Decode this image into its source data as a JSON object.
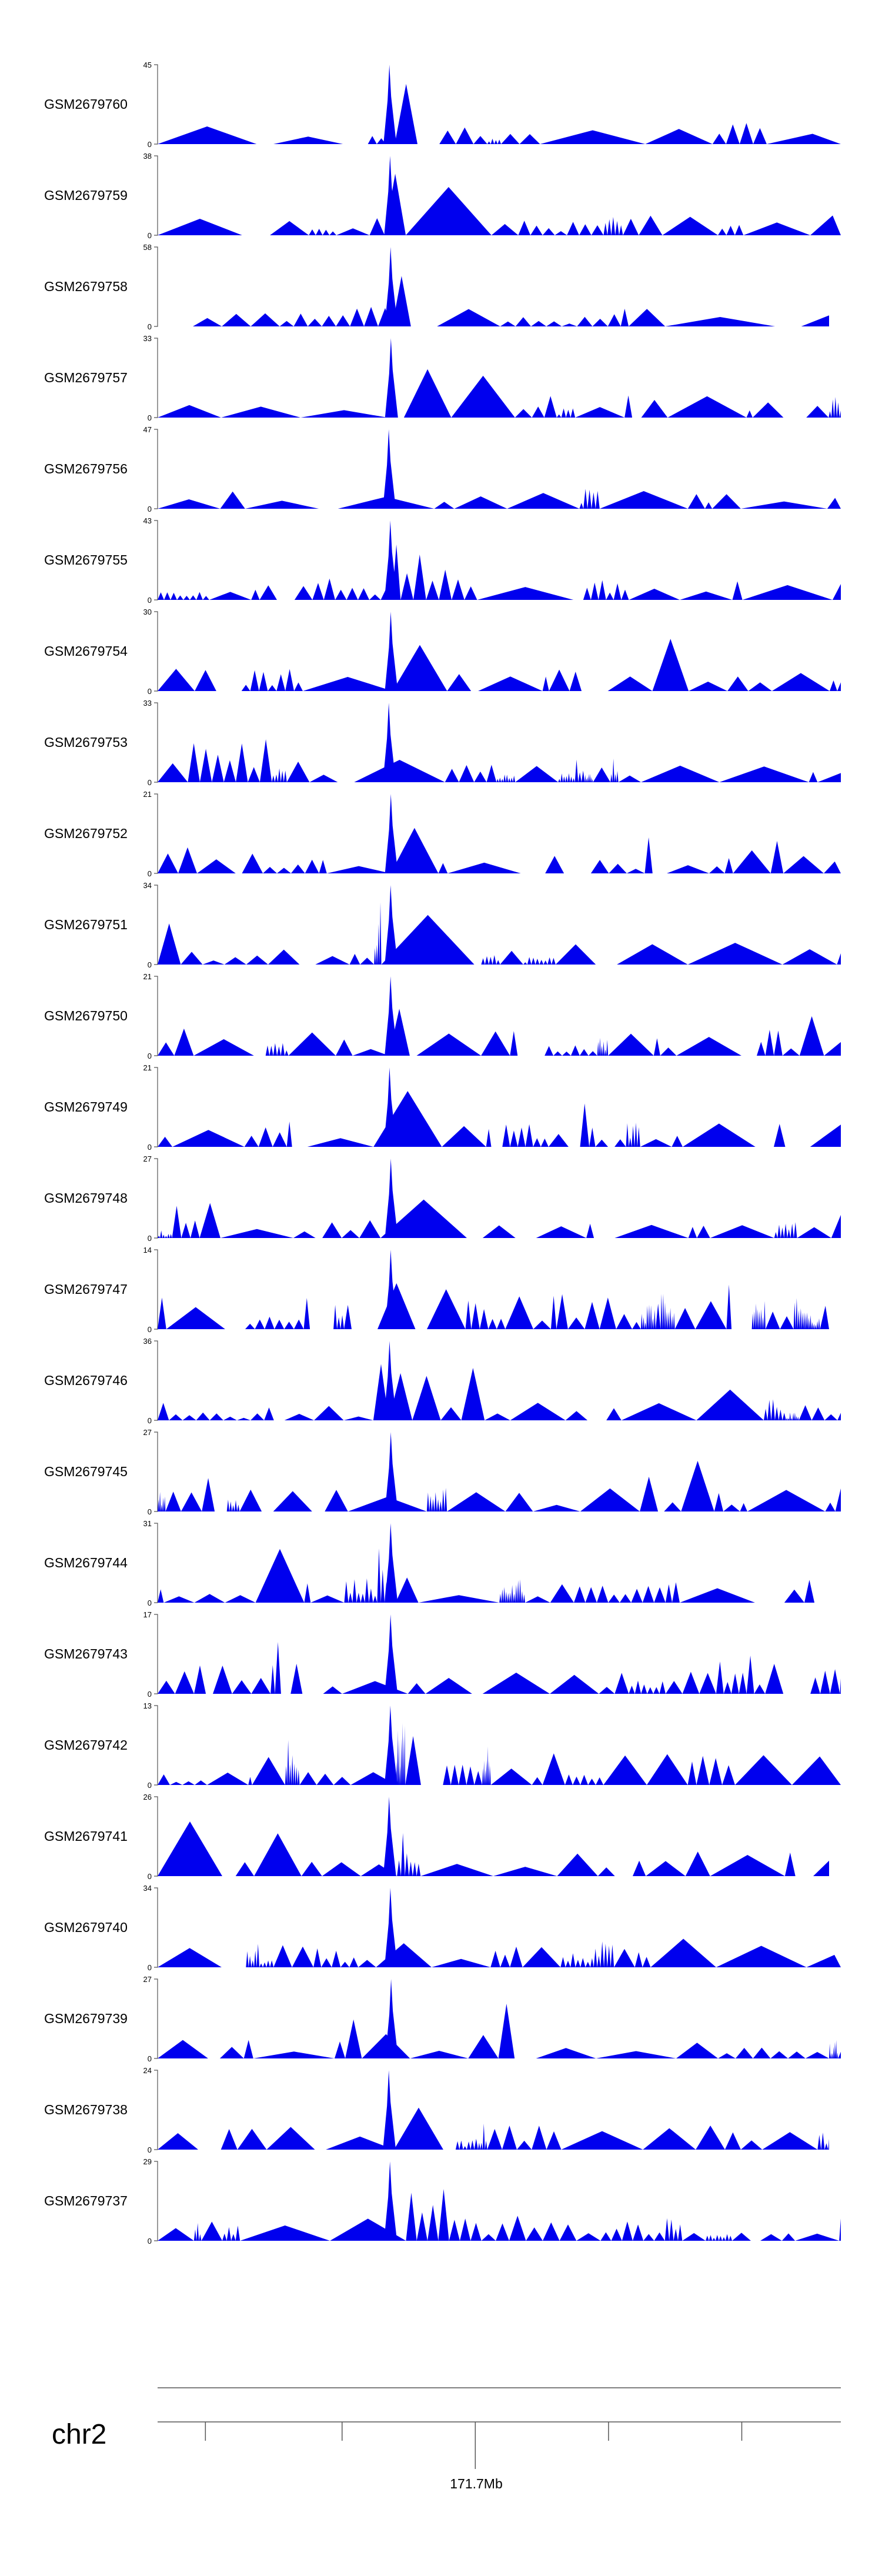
{
  "colors": {
    "track_fill": "#0000ee",
    "axis": "#555555",
    "text": "#000000",
    "background": "#ffffff"
  },
  "chart_data": {
    "type": "area",
    "title": "",
    "chromosome": "chr2",
    "position_label": "171.7Mb",
    "tracks": [
      {
        "name": "GSM2679760",
        "max": 45,
        "min": 0
      },
      {
        "name": "GSM2679759",
        "max": 38,
        "min": 0
      },
      {
        "name": "GSM2679758",
        "max": 58,
        "min": 0
      },
      {
        "name": "GSM2679757",
        "max": 33,
        "min": 0
      },
      {
        "name": "GSM2679756",
        "max": 47,
        "min": 0
      },
      {
        "name": "GSM2679755",
        "max": 43,
        "min": 0
      },
      {
        "name": "GSM2679754",
        "max": 30,
        "min": 0
      },
      {
        "name": "GSM2679753",
        "max": 33,
        "min": 0
      },
      {
        "name": "GSM2679752",
        "max": 21,
        "min": 0
      },
      {
        "name": "GSM2679751",
        "max": 34,
        "min": 0
      },
      {
        "name": "GSM2679750",
        "max": 21,
        "min": 0
      },
      {
        "name": "GSM2679749",
        "max": 21,
        "min": 0
      },
      {
        "name": "GSM2679748",
        "max": 27,
        "min": 0
      },
      {
        "name": "GSM2679747",
        "max": 14,
        "min": 0
      },
      {
        "name": "GSM2679746",
        "max": 36,
        "min": 0
      },
      {
        "name": "GSM2679745",
        "max": 27,
        "min": 0
      },
      {
        "name": "GSM2679744",
        "max": 31,
        "min": 0
      },
      {
        "name": "GSM2679743",
        "max": 17,
        "min": 0
      },
      {
        "name": "GSM2679742",
        "max": 13,
        "min": 0
      },
      {
        "name": "GSM2679741",
        "max": 26,
        "min": 0
      },
      {
        "name": "GSM2679740",
        "max": 34,
        "min": 0
      },
      {
        "name": "GSM2679739",
        "max": 27,
        "min": 0
      },
      {
        "name": "GSM2679738",
        "max": 24,
        "min": 0
      },
      {
        "name": "GSM2679737",
        "max": 29,
        "min": 0
      }
    ],
    "peak_position_fraction": 0.34,
    "axis_tick_fractions": [
      0.07,
      0.27,
      0.465,
      0.66,
      0.855
    ],
    "major_tick_fraction": 0.465
  }
}
